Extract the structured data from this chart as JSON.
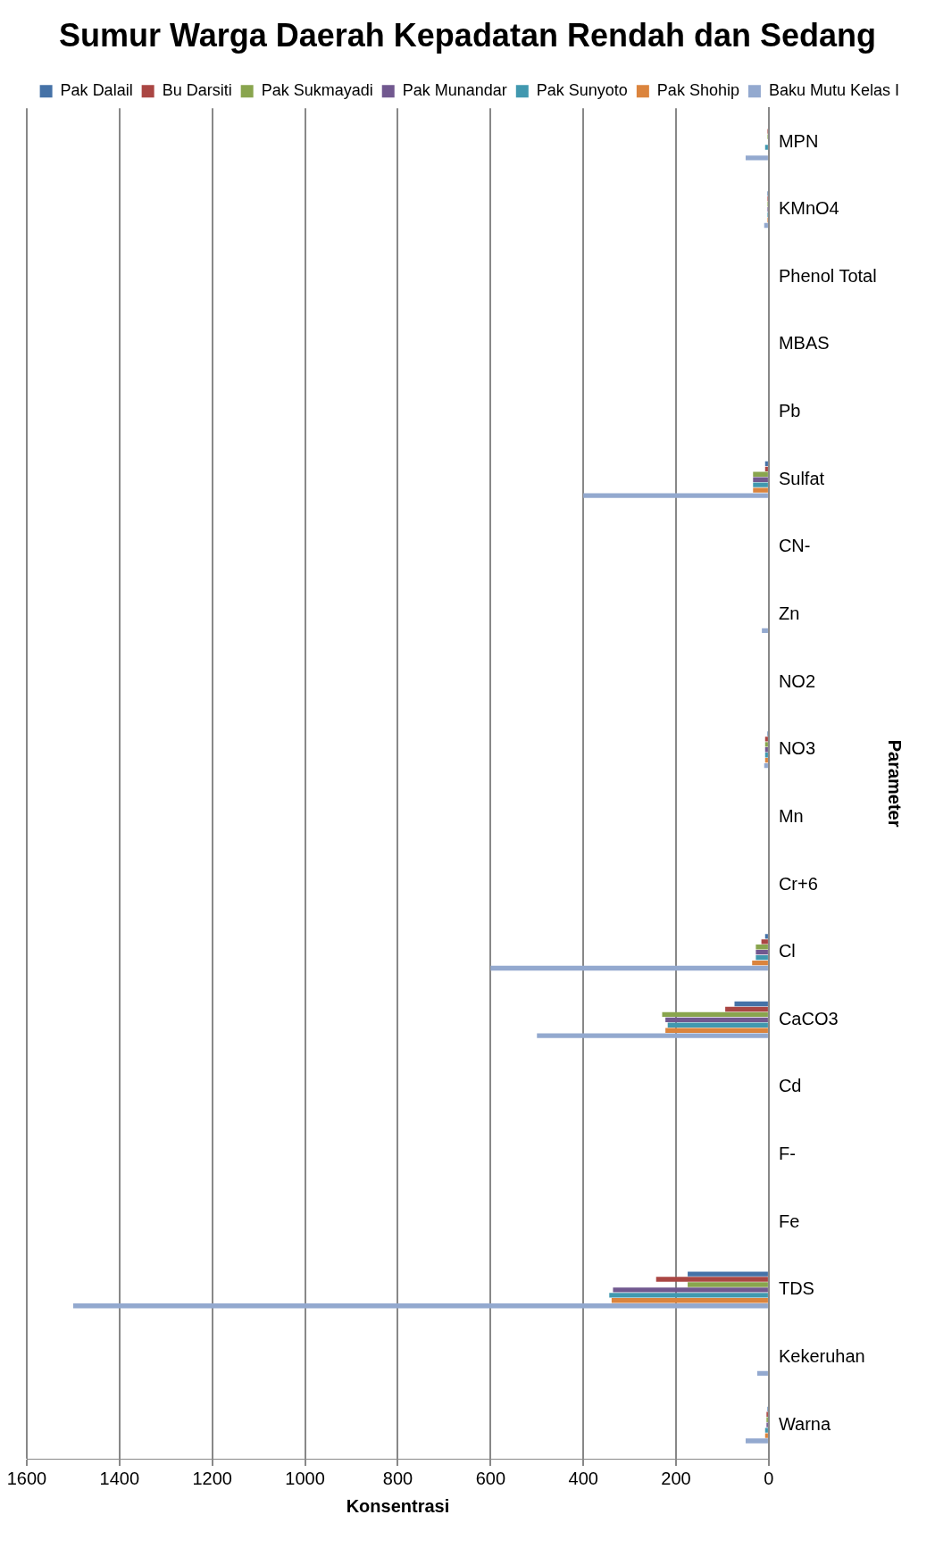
{
  "chart_data": {
    "type": "bar",
    "orientation": "horizontal",
    "title": "Sumur Warga Daerah Kepadatan Rendah dan Sedang",
    "xlabel": "Konsentrasi",
    "ylabel": "Parameter",
    "categories": [
      "MPN",
      "KMnO4",
      "Phenol Total",
      "MBAS",
      "Pb",
      "Sulfat",
      "CN-",
      "Zn",
      "NO2",
      "NO3",
      "Mn",
      "Cr+6",
      "Cl",
      "CaCO3",
      "Cd",
      "F-",
      "Fe",
      "TDS",
      "Kekeruhan",
      "Warna"
    ],
    "series": [
      {
        "name": "Pak Dalail",
        "color": "#4572a7",
        "values": [
          0,
          3,
          0,
          0,
          0,
          8,
          0,
          0,
          0,
          3,
          0,
          0,
          8,
          74,
          0,
          0,
          0,
          175,
          0,
          3
        ]
      },
      {
        "name": "Bu Darsiti",
        "color": "#aa4643",
        "values": [
          3,
          3,
          0,
          0,
          0,
          8,
          0,
          0,
          0,
          8,
          0,
          0,
          16,
          94,
          0,
          0,
          0,
          243,
          0,
          5
        ]
      },
      {
        "name": "Pak Sukmayadi",
        "color": "#89a54e",
        "values": [
          3,
          3,
          0,
          0,
          0,
          34,
          0,
          0,
          0,
          8,
          0,
          0,
          28,
          230,
          0,
          0,
          0,
          175,
          0,
          5
        ]
      },
      {
        "name": "Pak Munandar",
        "color": "#71588f",
        "values": [
          0,
          3,
          0,
          0,
          0,
          34,
          0,
          0,
          0,
          8,
          0,
          0,
          28,
          223,
          0,
          0,
          0,
          336,
          0,
          5
        ]
      },
      {
        "name": "Pak Sunyoto",
        "color": "#4198af",
        "values": [
          8,
          3,
          0,
          0,
          0,
          34,
          0,
          0,
          0,
          8,
          0,
          0,
          28,
          218,
          0,
          0,
          0,
          344,
          0,
          8
        ]
      },
      {
        "name": "Pak Shohip",
        "color": "#db843d",
        "values": [
          0,
          3,
          0,
          0,
          0,
          34,
          0,
          0,
          0,
          8,
          0,
          0,
          36,
          223,
          0,
          0,
          0,
          339,
          0,
          8
        ]
      },
      {
        "name": "Baku Mutu Kelas I",
        "color": "#93a9cf",
        "values": [
          50,
          10,
          0,
          0,
          0,
          400,
          0,
          15,
          0,
          10,
          0,
          0,
          600,
          500,
          0,
          0,
          0,
          1500,
          25,
          50
        ]
      }
    ],
    "xlim": [
      1600,
      0
    ],
    "xticks": [
      1600,
      1400,
      1200,
      1000,
      800,
      600,
      400,
      200,
      0
    ],
    "grid": "x",
    "legend": "top right"
  }
}
